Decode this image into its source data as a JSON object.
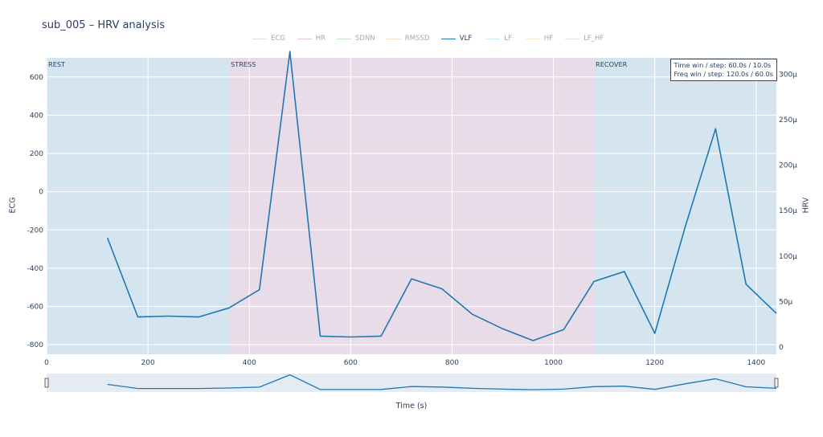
{
  "title": "sub_005 – HRV analysis",
  "legend": [
    {
      "name": "ECG",
      "color": "#9db8d8",
      "active": false
    },
    {
      "name": "HR",
      "color": "#e07a74",
      "active": false
    },
    {
      "name": "SDNN",
      "color": "#77c277",
      "active": false
    },
    {
      "name": "RMSSD",
      "color": "#f4b66e",
      "active": false
    },
    {
      "name": "VLF",
      "color": "#1f77b4",
      "active": true
    },
    {
      "name": "LF",
      "color": "#8fd3e8",
      "active": false
    },
    {
      "name": "HF",
      "color": "#f0d57a",
      "active": false
    },
    {
      "name": "LF_HF",
      "color": "#b9b9b9",
      "active": false
    }
  ],
  "phases": [
    {
      "label": "REST",
      "start": 0,
      "end": 360,
      "color": "#d4e5f0"
    },
    {
      "label": "STRESS",
      "start": 360,
      "end": 1080,
      "color": "#e8dce8"
    },
    {
      "label": "RECOVER",
      "start": 1080,
      "end": 1440,
      "color": "#d4e5f0"
    }
  ],
  "annotation": {
    "line1": "Time win / step: 60.0s / 10.0s",
    "line2": "Freq win / step: 120.0s / 60.0s"
  },
  "axes": {
    "xlabel": "Time (s)",
    "ylabel_left": "ECG",
    "ylabel_right": "HRV",
    "xlim": [
      0,
      1440
    ],
    "xticks": [
      0,
      200,
      400,
      600,
      800,
      1000,
      1200,
      1400
    ],
    "ylim_left": [
      -850,
      700
    ],
    "yticks_left": [
      -800,
      -600,
      -400,
      -200,
      0,
      200,
      400,
      600
    ],
    "ylim_right": [
      -8,
      318
    ],
    "yticks_right": [
      {
        "value": 0,
        "label": "0"
      },
      {
        "value": 50,
        "label": "50μ"
      },
      {
        "value": 100,
        "label": "100μ"
      },
      {
        "value": 150,
        "label": "150μ"
      },
      {
        "value": 200,
        "label": "200μ"
      },
      {
        "value": 250,
        "label": "250μ"
      },
      {
        "value": 300,
        "label": "300μ"
      }
    ]
  },
  "chart_data": {
    "type": "line",
    "x_unit": "s",
    "series": [
      {
        "name": "VLF",
        "color": "#1f77b4",
        "axis": "right",
        "unit": "μ",
        "x": [
          120,
          180,
          240,
          300,
          360,
          420,
          480,
          540,
          600,
          660,
          720,
          780,
          840,
          900,
          960,
          1020,
          1080,
          1140,
          1200,
          1260,
          1320,
          1380,
          1440
        ],
        "y": [
          120,
          33,
          34,
          33,
          43,
          63,
          325,
          12,
          11,
          12,
          75,
          64,
          36,
          20,
          7,
          19,
          72,
          83,
          15,
          132,
          240,
          69,
          37
        ]
      }
    ]
  }
}
